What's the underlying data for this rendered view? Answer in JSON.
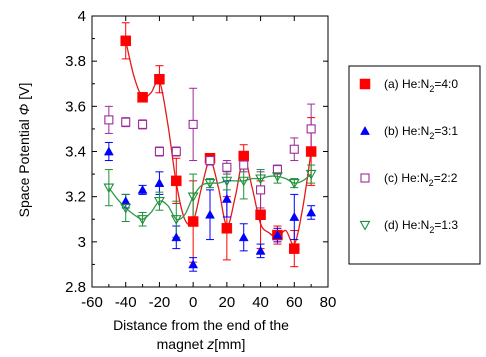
{
  "chart_data": {
    "type": "scatter",
    "xlabel_line1": "Distance from the end of the",
    "xlabel_line2_prefix": "magnet ",
    "xlabel_line2_var": "z",
    "xlabel_line2_unit": "[mm]",
    "ylabel_prefix": "Space Potential ",
    "ylabel_var": "Φ",
    "ylabel_unit": " [V]",
    "xlim": [
      -60,
      80
    ],
    "ylim": [
      2.8,
      4.0
    ],
    "xticks": [
      -60,
      -40,
      -20,
      0,
      20,
      40,
      60,
      80
    ],
    "xtick_labels": [
      "-60",
      "-40",
      "-20",
      "0",
      "20",
      "40",
      "60",
      "80"
    ],
    "yticks": [
      2.8,
      3.0,
      3.2,
      3.4,
      3.6,
      3.8,
      4.0
    ],
    "ytick_labels": [
      "2.8",
      "3",
      "3.2",
      "3.4",
      "3.6",
      "3.8",
      "4"
    ],
    "legend_position": "right",
    "series": [
      {
        "name": "(a) He:N2=4:0",
        "legend_prefix": "(a) He:N",
        "legend_sub": "2",
        "legend_suffix": "=4:0",
        "marker": "square-filled",
        "color": "#ff0000",
        "fit_color": "#e31a1a",
        "x": [
          -40,
          -30,
          -20,
          -10,
          0,
          10,
          20,
          30,
          40,
          50,
          60,
          70
        ],
        "y": [
          3.89,
          3.64,
          3.72,
          3.27,
          3.09,
          3.37,
          3.06,
          3.38,
          3.12,
          3.03,
          2.97,
          3.4
        ],
        "err": [
          0.08,
          0.0,
          0.06,
          0.1,
          0.18,
          0.02,
          0.14,
          0.05,
          0.15,
          0.04,
          0.08,
          0.15
        ],
        "fit_x": [
          -40,
          -35,
          -30,
          -25,
          -20,
          -15,
          -10,
          -5,
          0,
          5,
          10,
          15,
          20,
          25,
          30,
          35,
          40,
          45,
          50,
          55,
          60,
          65,
          70
        ],
        "fit_y": [
          3.89,
          3.73,
          3.64,
          3.66,
          3.71,
          3.52,
          3.26,
          3.1,
          3.09,
          3.24,
          3.36,
          3.24,
          3.07,
          3.2,
          3.37,
          3.24,
          3.08,
          3.04,
          3.02,
          3.05,
          2.99,
          3.15,
          3.4
        ]
      },
      {
        "name": "(b) He:N2=3:1",
        "legend_prefix": "(b) He:N",
        "legend_sub": "2",
        "legend_suffix": "=3:1",
        "marker": "triangle-up-filled",
        "color": "#0000ff",
        "x": [
          -50,
          -40,
          -30,
          -20,
          -10,
          0,
          10,
          20,
          30,
          40,
          50,
          60,
          70
        ],
        "y": [
          3.4,
          3.18,
          3.23,
          3.26,
          3.02,
          2.9,
          3.12,
          3.19,
          3.02,
          2.96,
          3.03,
          3.11,
          3.13
        ],
        "err": [
          0.04,
          0.03,
          0.02,
          0.05,
          0.05,
          0.03,
          0.11,
          0.08,
          0.06,
          0.03,
          0.03,
          0.1,
          0.03
        ]
      },
      {
        "name": "(c) He:N2=2:2",
        "legend_prefix": "(c) He:N",
        "legend_sub": "2",
        "legend_suffix": "=2:2",
        "marker": "square-open",
        "color": "#9b2c9b",
        "x": [
          -50,
          -40,
          -30,
          -20,
          -10,
          0,
          10,
          20,
          30,
          40,
          50,
          60,
          70
        ],
        "y": [
          3.54,
          3.53,
          3.52,
          3.4,
          3.4,
          3.52,
          3.36,
          3.33,
          3.34,
          3.23,
          3.32,
          3.41,
          3.5
        ],
        "err": [
          0.06,
          0.02,
          0.02,
          0.02,
          0.02,
          0.16,
          0.02,
          0.03,
          0.03,
          0.08,
          0.02,
          0.05,
          0.11
        ]
      },
      {
        "name": "(d) He:N2=1:3",
        "legend_prefix": "(d) He:N",
        "legend_sub": "2",
        "legend_suffix": "=1:3",
        "marker": "triangle-down-open",
        "color": "#1f8f3a",
        "fit_color": "#2f9a4a",
        "x": [
          -50,
          -40,
          -30,
          -20,
          -10,
          0,
          10,
          20,
          30,
          40,
          50,
          60,
          70
        ],
        "y": [
          3.24,
          3.15,
          3.1,
          3.18,
          3.1,
          3.2,
          3.26,
          3.27,
          3.27,
          3.28,
          3.29,
          3.26,
          3.3
        ],
        "err": [
          0.08,
          0.06,
          0.03,
          0.04,
          0.08,
          0.1,
          0.02,
          0.04,
          0.08,
          0.04,
          0.03,
          0.02,
          0.04
        ],
        "fit_x": [
          -50,
          -45,
          -40,
          -35,
          -30,
          -25,
          -20,
          -15,
          -10,
          -5,
          0,
          5,
          10,
          15,
          20,
          25,
          30,
          35,
          40,
          45,
          50,
          55,
          60,
          65,
          70
        ],
        "fit_y": [
          3.24,
          3.19,
          3.15,
          3.12,
          3.1,
          3.13,
          3.18,
          3.16,
          3.1,
          3.12,
          3.2,
          3.25,
          3.26,
          3.26,
          3.27,
          3.27,
          3.27,
          3.28,
          3.28,
          3.29,
          3.29,
          3.28,
          3.26,
          3.27,
          3.3
        ]
      }
    ]
  }
}
